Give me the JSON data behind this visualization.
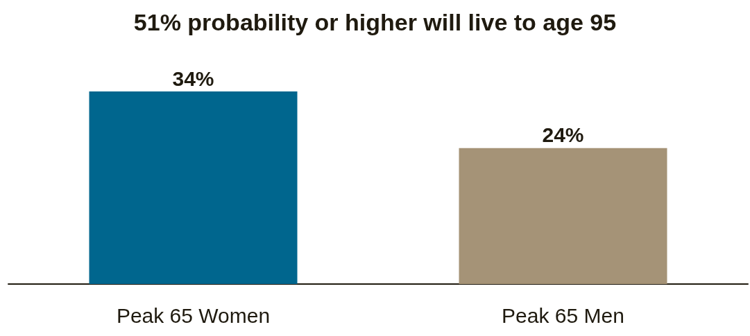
{
  "chart_data": {
    "type": "bar",
    "title": "51% probability or higher will live to age 95",
    "categories": [
      "Peak 65 Women",
      "Peak 65 Men"
    ],
    "values": [
      34,
      24
    ],
    "value_labels": [
      "34%",
      "24%"
    ],
    "colors": [
      "#00668e",
      "#a59377"
    ]
  }
}
